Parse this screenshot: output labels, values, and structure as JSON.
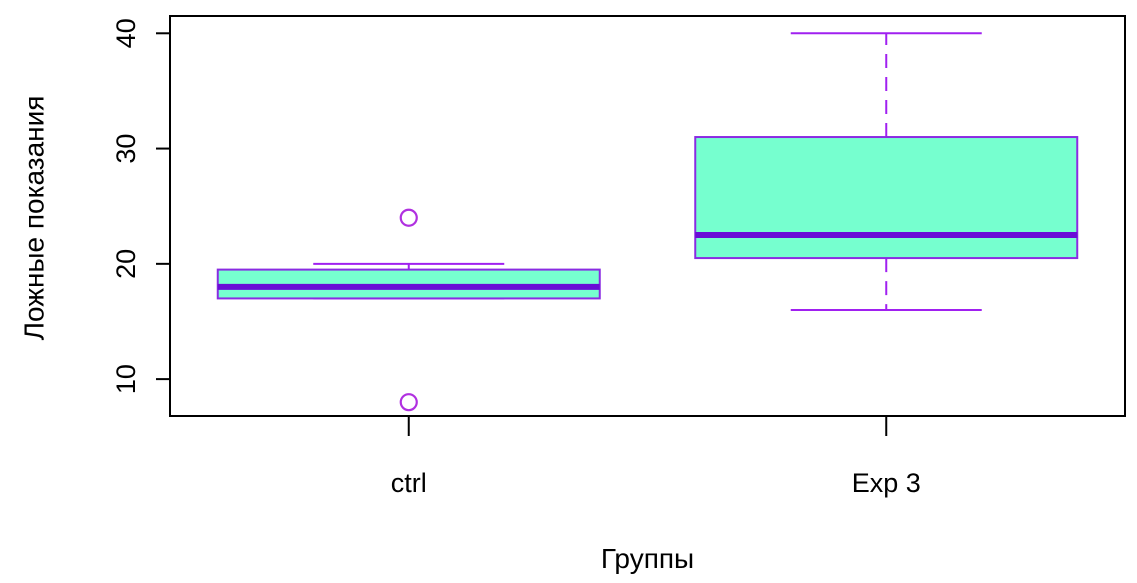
{
  "chart_data": {
    "type": "boxplot",
    "title": "",
    "xlabel": "Группы",
    "ylabel": "Ложные показания",
    "ylim": [
      6.8,
      41.5
    ],
    "yticks": [
      10,
      20,
      30,
      40
    ],
    "legend": "none",
    "grid": false,
    "categories": [
      "ctrl",
      "Exp 3"
    ],
    "boxes": [
      {
        "group": "ctrl",
        "whisker_low": 17,
        "q1": 17,
        "median": 18,
        "q3": 19.5,
        "whisker_high": 20,
        "outliers": [
          24,
          8
        ]
      },
      {
        "group": "Exp 3",
        "whisker_low": 16,
        "q1": 20.5,
        "median": 22.5,
        "q3": 31,
        "whisker_high": 40,
        "outliers": []
      }
    ],
    "colors": {
      "box_fill": "#76ffcf",
      "box_border": "#8a2be2",
      "median": "#6a0dd6",
      "whisker": "#a020f0",
      "outlier": "#b030e0",
      "frame": "#000000"
    }
  }
}
